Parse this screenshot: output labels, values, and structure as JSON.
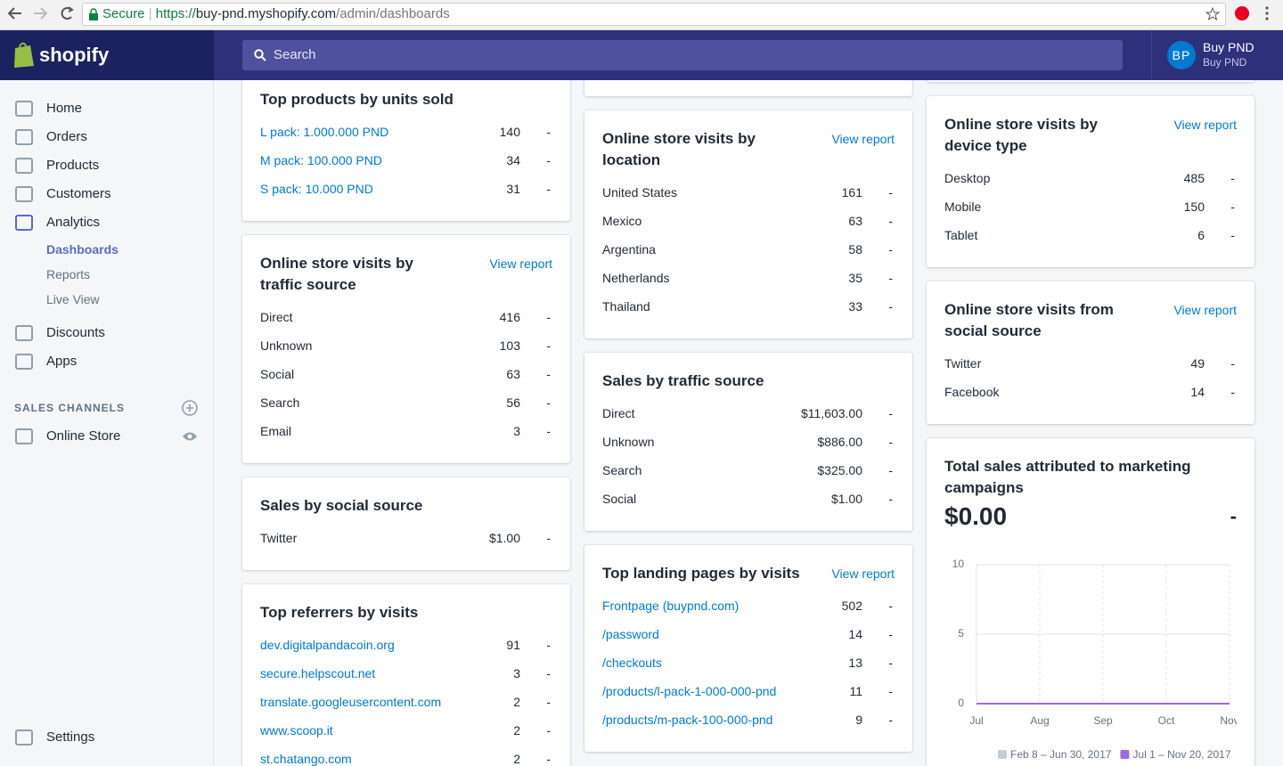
{
  "browser": {
    "secure": "Secure",
    "scheme": "https://",
    "host": "buy-pnd.myshopify.com",
    "path": "/admin/dashboards"
  },
  "topbar": {
    "logo": "shopify",
    "search": "Search",
    "initials": "BP",
    "user": "Buy PND",
    "store": "Buy PND"
  },
  "nav": {
    "items": [
      "Home",
      "Orders",
      "Products",
      "Customers",
      "Analytics"
    ],
    "sub": [
      "Dashboards",
      "Reports",
      "Live View"
    ],
    "active_sub": 0,
    "items2": [
      "Discounts",
      "Apps"
    ],
    "section": "SALES CHANNELS",
    "channels": [
      "Online Store"
    ],
    "settings": "Settings"
  },
  "columns": [
    {
      "cards": [
        {
          "title": "Top products by units sold",
          "rows": [
            {
              "label": "L pack: 1.000.000 PND",
              "value": 140,
              "change": "-",
              "link": true
            },
            {
              "label": "M pack: 100.000 PND",
              "value": 34,
              "change": "-",
              "link": true
            },
            {
              "label": "S pack: 10.000 PND",
              "value": 31,
              "change": "-",
              "link": true
            }
          ]
        },
        {
          "title": "Online store visits by traffic source",
          "action": "View report",
          "rows": [
            {
              "label": "Direct",
              "value": 416,
              "change": "-"
            },
            {
              "label": "Unknown",
              "value": 103,
              "change": "-"
            },
            {
              "label": "Social",
              "value": 63,
              "change": "-"
            },
            {
              "label": "Search",
              "value": 56,
              "change": "-"
            },
            {
              "label": "Email",
              "value": 3,
              "change": "-"
            }
          ]
        },
        {
          "title": "Sales by social source",
          "rows": [
            {
              "label": "Twitter",
              "value": "$1.00",
              "change": "-"
            }
          ]
        },
        {
          "title": "Top referrers by visits",
          "rows": [
            {
              "label": "dev.digitalpandacoin.org",
              "value": 91,
              "change": "-",
              "link": true
            },
            {
              "label": "secure.helpscout.net",
              "value": 3,
              "change": "-",
              "link": true
            },
            {
              "label": "translate.googleusercontent.com",
              "value": 2,
              "change": "-",
              "link": true
            },
            {
              "label": "www.scoop.it",
              "value": 2,
              "change": "-",
              "link": true
            },
            {
              "label": "st.chatango.com",
              "value": 2,
              "change": "-",
              "link": true
            }
          ]
        }
      ]
    },
    {
      "cards": [
        {
          "title": "Online store visits by location",
          "action": "View report",
          "rows": [
            {
              "label": "United States",
              "value": 161,
              "change": "-"
            },
            {
              "label": "Mexico",
              "value": 63,
              "change": "-"
            },
            {
              "label": "Argentina",
              "value": 58,
              "change": "-"
            },
            {
              "label": "Netherlands",
              "value": 35,
              "change": "-"
            },
            {
              "label": "Thailand",
              "value": 33,
              "change": "-"
            }
          ]
        },
        {
          "title": "Sales by traffic source",
          "rows": [
            {
              "label": "Direct",
              "value": "$11,603.00",
              "change": "-"
            },
            {
              "label": "Unknown",
              "value": "$886.00",
              "change": "-"
            },
            {
              "label": "Search",
              "value": "$325.00",
              "change": "-"
            },
            {
              "label": "Social",
              "value": "$1.00",
              "change": "-"
            }
          ]
        },
        {
          "title": "Top landing pages by visits",
          "action": "View report",
          "rows": [
            {
              "label": "Frontpage (buypnd.com)",
              "value": 502,
              "change": "-",
              "link": true
            },
            {
              "label": "/password",
              "value": 14,
              "change": "-",
              "link": true
            },
            {
              "label": "/checkouts",
              "value": 13,
              "change": "-",
              "link": true
            },
            {
              "label": "/products/l-pack-1-000-000-pnd",
              "value": 11,
              "change": "-",
              "link": true
            },
            {
              "label": "/products/m-pack-100-000-pnd",
              "value": 9,
              "change": "-",
              "link": true
            }
          ]
        }
      ]
    },
    {
      "cards": [
        {
          "title": "Online store visits by device type",
          "action": "View report",
          "rows": [
            {
              "label": "Desktop",
              "value": 485,
              "change": "-"
            },
            {
              "label": "Mobile",
              "value": 150,
              "change": "-"
            },
            {
              "label": "Tablet",
              "value": 6,
              "change": "-"
            }
          ]
        },
        {
          "title": "Online store visits from social source",
          "action": "View report",
          "rows": [
            {
              "label": "Twitter",
              "value": 49,
              "change": "-"
            },
            {
              "label": "Facebook",
              "value": 14,
              "change": "-"
            }
          ]
        }
      ]
    }
  ],
  "chart_data": {
    "type": "line",
    "title": "Total sales attributed to marketing campaigns",
    "total": "$0.00",
    "change": "-",
    "categories": [
      "Jul",
      "Aug",
      "Sep",
      "Oct",
      "Nov"
    ],
    "series": [
      {
        "name": "Feb 8 – Jun 30, 2017",
        "color": "#c4cdd5",
        "values": [
          0,
          0,
          0,
          0,
          0
        ]
      },
      {
        "name": "Jul 1 – Nov 20, 2017",
        "color": "#9c6ade",
        "values": [
          0,
          0,
          0,
          0,
          0
        ]
      }
    ],
    "ylim": [
      0,
      10
    ],
    "yticks": [
      0,
      5,
      10
    ],
    "grid": true,
    "legend": "bottom"
  }
}
